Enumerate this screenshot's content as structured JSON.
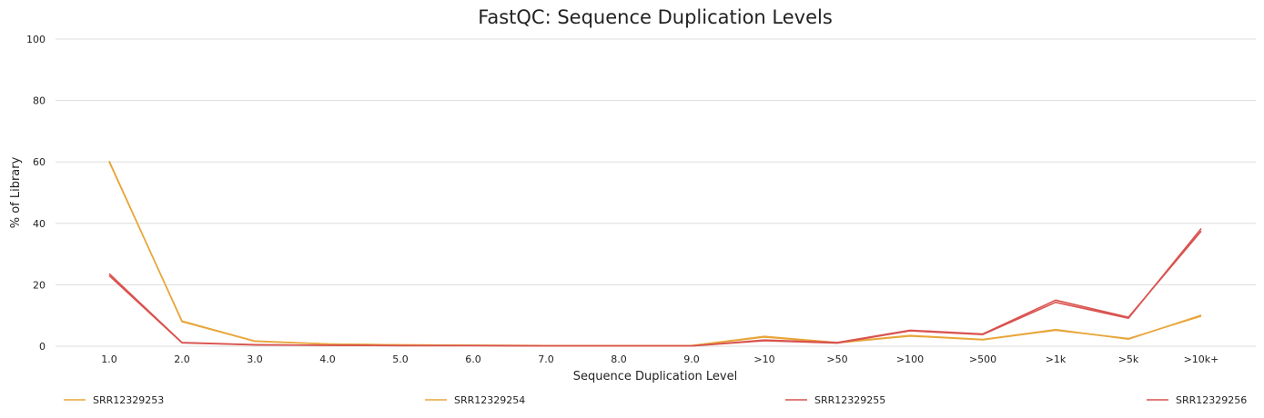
{
  "chart_data": {
    "type": "line",
    "title": "FastQC: Sequence Duplication Levels",
    "xlabel": "Sequence Duplication Level",
    "ylabel": "% of Library",
    "ylim": [
      0,
      100
    ],
    "yticks": [
      0,
      20,
      40,
      60,
      80,
      100
    ],
    "grid": true,
    "legend_position": "bottom",
    "categories": [
      "1.0",
      "2.0",
      "3.0",
      "4.0",
      "5.0",
      "6.0",
      "7.0",
      "8.0",
      "9.0",
      ">10",
      ">50",
      ">100",
      ">500",
      ">1k",
      ">5k",
      ">10k+"
    ],
    "series": [
      {
        "name": "SRR12329253",
        "color": "#e8a63a",
        "values": [
          60.3,
          8.0,
          1.6,
          0.7,
          0.4,
          0.3,
          0.2,
          0.2,
          0.2,
          3.2,
          1.2,
          3.5,
          2.2,
          5.4,
          2.3,
          10.1
        ]
      },
      {
        "name": "SRR12329254",
        "color": "#e8a63a",
        "values": [
          60.0,
          8.2,
          1.7,
          0.7,
          0.4,
          0.3,
          0.2,
          0.2,
          0.2,
          3.0,
          1.1,
          3.3,
          2.1,
          5.2,
          2.5,
          9.8
        ]
      },
      {
        "name": "SRR12329255",
        "color": "#d9534f",
        "values": [
          23.6,
          1.2,
          0.5,
          0.3,
          0.2,
          0.2,
          0.1,
          0.1,
          0.1,
          2.0,
          1.2,
          5.2,
          4.0,
          15.0,
          9.4,
          37.5
        ]
      },
      {
        "name": "SRR12329256",
        "color": "#d9534f",
        "values": [
          23.0,
          1.1,
          0.4,
          0.3,
          0.2,
          0.2,
          0.1,
          0.1,
          0.1,
          1.8,
          1.0,
          5.0,
          3.8,
          14.3,
          9.1,
          38.3
        ]
      }
    ]
  }
}
